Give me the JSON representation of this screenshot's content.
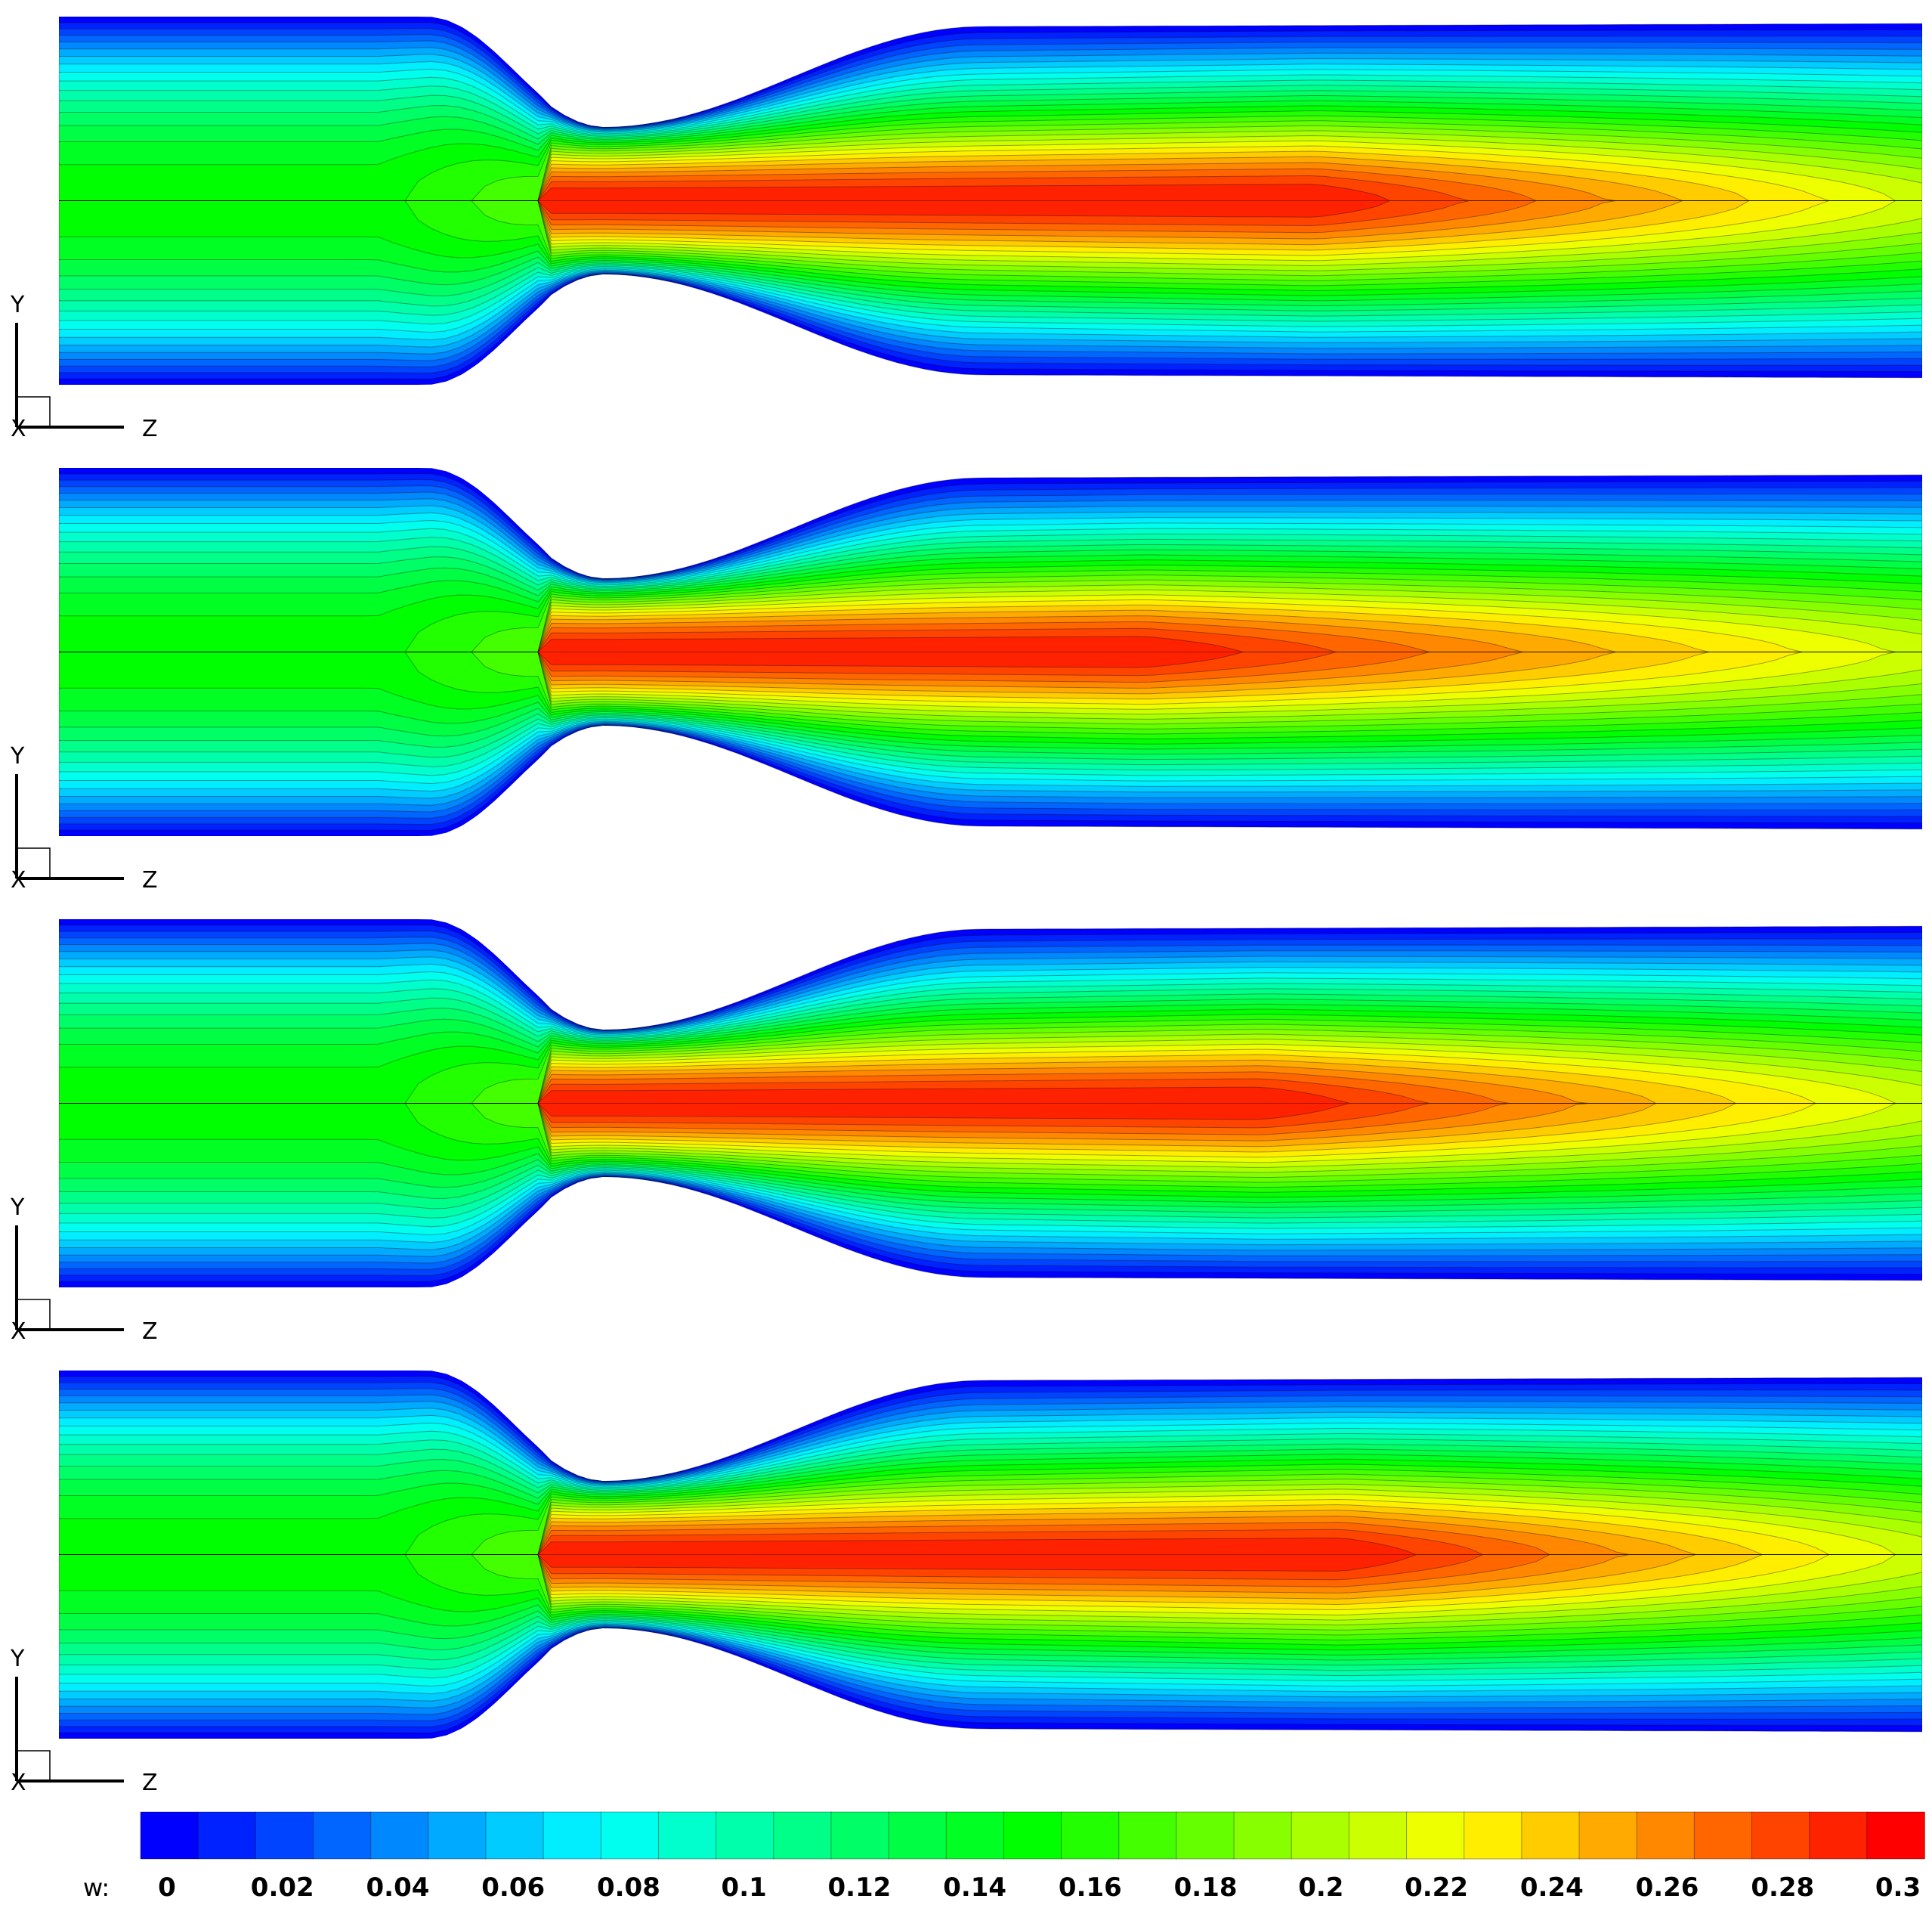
{
  "panels": [
    {
      "id": "panel-1",
      "red_core_end": 0.54,
      "tail_end": 1.0,
      "core_color_at_exit": "#ffee00"
    },
    {
      "id": "panel-2",
      "red_core_end": 0.41,
      "tail_end": 0.96,
      "core_color_at_exit": "#ffff00"
    },
    {
      "id": "panel-3",
      "red_core_end": 0.5,
      "tail_end": 0.98,
      "core_color_at_exit": "#ffcc00"
    },
    {
      "id": "panel-4",
      "red_core_end": 0.56,
      "tail_end": 0.98,
      "core_color_at_exit": "#ffbb00"
    }
  ],
  "axes": {
    "y_label": "Y",
    "z_label": "Z",
    "x_label": "X"
  },
  "colorbar": {
    "variable": "w:",
    "min": 0,
    "max": 0.3,
    "levels": 31,
    "ticks": [
      "0",
      "0.02",
      "0.04",
      "0.06",
      "0.08",
      "0.1",
      "0.12",
      "0.14",
      "0.16",
      "0.18",
      "0.2",
      "0.22",
      "0.24",
      "0.26",
      "0.28",
      "0.3"
    ],
    "colors": [
      "#0000ff",
      "#00ffff",
      "#00ff00",
      "#ffff00",
      "#ff0000"
    ]
  }
}
